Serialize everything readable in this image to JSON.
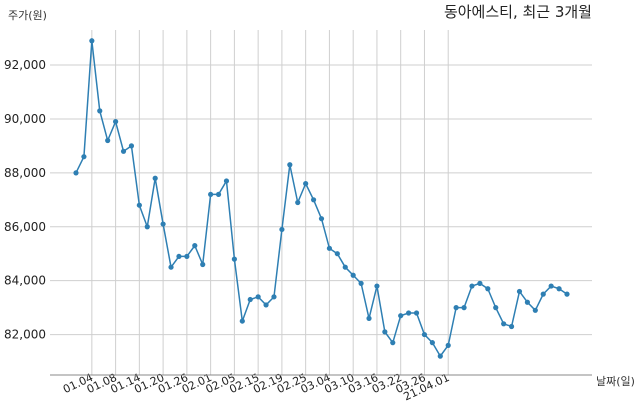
{
  "chart_data": {
    "type": "line",
    "title": "동아에스티, 최근 3개월",
    "ylabel": "주가(원)",
    "xlabel": "날짜(일)",
    "ylim": [
      80500,
      93300
    ],
    "yticks": [
      82000,
      84000,
      86000,
      88000,
      90000,
      92000
    ],
    "ytick_labels": [
      "82,000",
      "84,000",
      "86,000",
      "88,000",
      "90,000",
      "92,000"
    ],
    "xtick_labels": [
      "01.04",
      "01.08",
      "01.14",
      "01.20",
      "01.26",
      "02.01",
      "02.05",
      "02.15",
      "02.19",
      "02.25",
      "03.04",
      "03.10",
      "03.16",
      "03.22",
      "03.26",
      "21.04.01"
    ],
    "xtick_index": [
      2,
      5,
      8,
      11,
      14,
      17,
      20,
      23,
      26,
      29,
      32,
      35,
      38,
      41,
      44,
      47
    ],
    "grid": true,
    "series": [
      {
        "color": "#2e7fb3",
        "values": [
          88000,
          88600,
          92900,
          90300,
          89200,
          89900,
          88800,
          89000,
          86800,
          86000,
          87800,
          86100,
          84500,
          84900,
          84900,
          85300,
          84600,
          87200,
          87200,
          87700,
          84800,
          82500,
          83300,
          83400,
          83100,
          83400,
          85900,
          88300,
          86900,
          87600,
          87000,
          86300,
          85200,
          85000,
          84500,
          84200,
          83900,
          82600,
          83800,
          82100,
          81700,
          82700,
          82800,
          82800,
          82000,
          81700,
          81200,
          81600,
          83000,
          83000,
          83800,
          83900,
          83700,
          83000,
          82400,
          82300,
          83600,
          83200,
          82900,
          83500,
          83800,
          83700,
          83500
        ]
      }
    ]
  }
}
